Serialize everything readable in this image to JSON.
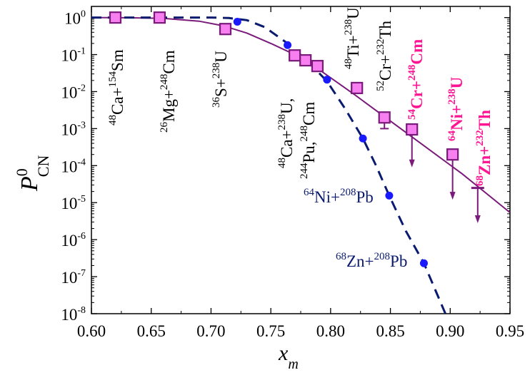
{
  "chart_data": {
    "type": "scatter",
    "xlabel": {
      "main": "x",
      "sub": "m"
    },
    "ylabel": {
      "main": "P",
      "sup": "0",
      "sub": "CN"
    },
    "xlim": [
      0.6,
      0.95
    ],
    "ylim": [
      1e-08,
      2
    ],
    "yscale": "log",
    "grid": false,
    "x_ticks": [
      "0.60",
      "0.65",
      "0.70",
      "0.75",
      "0.80",
      "0.85",
      "0.90",
      "0.95"
    ],
    "y_ticks": [
      {
        "base": "10",
        "exp": "0"
      },
      {
        "base": "10",
        "exp": "-1"
      },
      {
        "base": "10",
        "exp": "-2"
      },
      {
        "base": "10",
        "exp": "-3"
      },
      {
        "base": "10",
        "exp": "-4"
      },
      {
        "base": "10",
        "exp": "-5"
      },
      {
        "base": "10",
        "exp": "-6"
      },
      {
        "base": "10",
        "exp": "-7"
      },
      {
        "base": "10",
        "exp": "-8"
      }
    ],
    "colors": {
      "squares_fill": "#f77ff0",
      "squares_edge": "#7a1a7a",
      "solid_curve": "#7a1a7a",
      "dashed_curve": "#0a1a6e",
      "circles": "#1a1aff",
      "label_black": "#000000",
      "label_pink": "#ff1493",
      "label_navy": "#0a1a6e"
    },
    "series": [
      {
        "marker": "square",
        "points": [
          {
            "x": 0.62,
            "y": 1.0
          },
          {
            "x": 0.657,
            "y": 1.0
          },
          {
            "x": 0.712,
            "y": 0.49,
            "err_lo": 0.42,
            "err_hi": 0.56
          },
          {
            "x": 0.77,
            "y": 0.095
          },
          {
            "x": 0.779,
            "y": 0.07
          },
          {
            "x": 0.789,
            "y": 0.049
          },
          {
            "x": 0.822,
            "y": 0.0125,
            "err_lo": 0.0095,
            "err_hi": 0.0135
          },
          {
            "x": 0.845,
            "y": 0.002,
            "err_lo": 0.001,
            "err_hi": 0.0027
          },
          {
            "x": 0.868,
            "y": 0.00095,
            "upper_limit": true,
            "arrow_to": 9e-05
          },
          {
            "x": 0.902,
            "y": 0.0002,
            "upper_limit": true,
            "arrow_to": 1.2e-05
          },
          {
            "x": 0.923,
            "y": 2.5e-05,
            "upper_limit": true,
            "bar_only": true,
            "arrow_to": 2.8e-06
          }
        ]
      },
      {
        "marker": "circle",
        "points": [
          {
            "x": 0.722,
            "y": 0.77
          },
          {
            "x": 0.764,
            "y": 0.18
          },
          {
            "x": 0.797,
            "y": 0.021
          },
          {
            "x": 0.827,
            "y": 0.00054
          },
          {
            "x": 0.849,
            "y": 1.55e-05
          },
          {
            "x": 0.878,
            "y": 2.3e-07
          }
        ]
      },
      {
        "line": "solid",
        "points": [
          {
            "x": 0.6,
            "y": 1.0
          },
          {
            "x": 0.63,
            "y": 0.99
          },
          {
            "x": 0.66,
            "y": 0.95
          },
          {
            "x": 0.69,
            "y": 0.8
          },
          {
            "x": 0.71,
            "y": 0.6
          },
          {
            "x": 0.73,
            "y": 0.38
          },
          {
            "x": 0.75,
            "y": 0.2
          },
          {
            "x": 0.77,
            "y": 0.1
          },
          {
            "x": 0.79,
            "y": 0.04
          },
          {
            "x": 0.82,
            "y": 0.0083
          },
          {
            "x": 0.85,
            "y": 0.0016
          },
          {
            "x": 0.88,
            "y": 0.00031
          },
          {
            "x": 0.91,
            "y": 6e-05
          },
          {
            "x": 0.95,
            "y": 5.4e-06
          }
        ]
      },
      {
        "line": "dashed",
        "points": [
          {
            "x": 0.6,
            "y": 1.0
          },
          {
            "x": 0.7,
            "y": 1.0
          },
          {
            "x": 0.715,
            "y": 0.97
          },
          {
            "x": 0.73,
            "y": 0.85
          },
          {
            "x": 0.745,
            "y": 0.55
          },
          {
            "x": 0.764,
            "y": 0.2
          },
          {
            "x": 0.78,
            "y": 0.07
          },
          {
            "x": 0.797,
            "y": 0.019
          },
          {
            "x": 0.812,
            "y": 0.0035
          },
          {
            "x": 0.827,
            "y": 0.00054
          },
          {
            "x": 0.838,
            "y": 0.0001
          },
          {
            "x": 0.849,
            "y": 1.55e-05
          },
          {
            "x": 0.863,
            "y": 1.7e-06
          },
          {
            "x": 0.878,
            "y": 2.3e-07
          },
          {
            "x": 0.896,
            "y": 1e-08
          }
        ]
      }
    ],
    "annotations": [
      {
        "color": "black",
        "parts": [
          [
            "sup",
            "48"
          ],
          [
            "t",
            "Ca+"
          ],
          [
            "sup",
            "154"
          ],
          [
            "t",
            "Sm"
          ]
        ]
      },
      {
        "color": "black",
        "parts": [
          [
            "sup",
            "26"
          ],
          [
            "t",
            "Mg+"
          ],
          [
            "sup",
            "248"
          ],
          [
            "t",
            "Cm"
          ]
        ]
      },
      {
        "color": "black",
        "parts": [
          [
            "sup",
            "36"
          ],
          [
            "t",
            "S+"
          ],
          [
            "sup",
            "238"
          ],
          [
            "t",
            "U"
          ]
        ]
      },
      {
        "color": "black",
        "parts": [
          [
            "sup",
            "48"
          ],
          [
            "t",
            "Ca+"
          ],
          [
            "sup",
            "238"
          ],
          [
            "t",
            "U,"
          ]
        ]
      },
      {
        "color": "black",
        "parts": [
          [
            "sup",
            "244"
          ],
          [
            "t",
            "Pu,"
          ],
          [
            "sup",
            "248"
          ],
          [
            "t",
            "Cm"
          ]
        ]
      },
      {
        "color": "black",
        "parts": [
          [
            "sup",
            "48"
          ],
          [
            "t",
            "Ti+"
          ],
          [
            "sup",
            "238"
          ],
          [
            "t",
            "U"
          ]
        ]
      },
      {
        "color": "black",
        "parts": [
          [
            "sup",
            "52"
          ],
          [
            "t",
            "Cr+"
          ],
          [
            "sup",
            "232"
          ],
          [
            "t",
            "Th"
          ]
        ]
      },
      {
        "color": "pink",
        "bold": true,
        "parts": [
          [
            "sup",
            "54"
          ],
          [
            "t",
            "Cr+"
          ],
          [
            "sup",
            "248"
          ],
          [
            "t",
            "Cm"
          ]
        ]
      },
      {
        "color": "pink",
        "bold": true,
        "parts": [
          [
            "sup",
            "64"
          ],
          [
            "t",
            "Ni+"
          ],
          [
            "sup",
            "238"
          ],
          [
            "t",
            "U"
          ]
        ]
      },
      {
        "color": "pink",
        "bold": true,
        "parts": [
          [
            "sup",
            "68"
          ],
          [
            "t",
            "Zn+"
          ],
          [
            "sup",
            "232"
          ],
          [
            "t",
            "Th"
          ]
        ]
      },
      {
        "color": "navy",
        "parts": [
          [
            "sup",
            "64"
          ],
          [
            "t",
            "Ni+"
          ],
          [
            "sup",
            "208"
          ],
          [
            "t",
            "Pb"
          ]
        ]
      },
      {
        "color": "navy",
        "parts": [
          [
            "sup",
            "68"
          ],
          [
            "t",
            "Zn+"
          ],
          [
            "sup",
            "208"
          ],
          [
            "t",
            "Pb"
          ]
        ]
      }
    ]
  }
}
